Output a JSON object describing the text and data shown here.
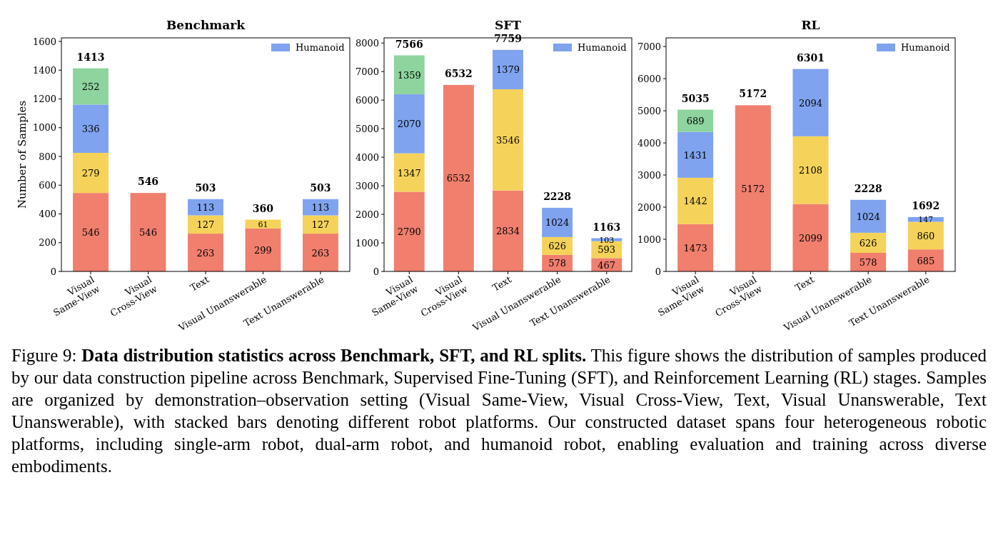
{
  "chart_data": [
    {
      "type": "bar",
      "title": "Benchmark",
      "ylabel": "Number of Samples",
      "stacked": true,
      "categories": [
        "Visual\nSame-View",
        "Visual\nCross-View",
        "Text",
        "Visual Unanswerable",
        "Text Unanswerable"
      ],
      "series": [
        {
          "color": "#f07f6e",
          "values": [
            546,
            546,
            263,
            299,
            263
          ]
        },
        {
          "color": "#f5d35a",
          "values": [
            279,
            null,
            127,
            61,
            127
          ]
        },
        {
          "name": "Humanoid",
          "color": "#7fa3ee",
          "values": [
            336,
            null,
            113,
            null,
            113
          ]
        },
        {
          "color": "#8dd49e",
          "values": [
            252,
            null,
            null,
            null,
            null
          ]
        }
      ],
      "totals": [
        "1413",
        "546",
        "503",
        "360",
        "503"
      ],
      "data_labels": true,
      "ylim": [
        0,
        1625
      ],
      "yticks": [
        0,
        200,
        400,
        600,
        800,
        1000,
        1200,
        1400,
        1600
      ],
      "legend": "top right",
      "annotations": [
        "Figure 9: ",
        "Data distribution statistics across Benchmark, SFT, and RL splits.",
        " This figure shows the distribution of samples produced by our data construction pipeline across Benchmark, Supervised Fine-Tuning (SFT), and Reinforcement Learning (RL) stages. Samples are organized by demonstration–observation setting (Visual Same-View, Visual Cross-View, Text, Visual Unanswerable, Text Unanswerable), with stacked bars denoting different robot platforms. Our constructed dataset spans four heterogeneous robotic platforms, including single-arm robot, dual-arm robot, and humanoid robot, enabling evaluation and training across diverse embodiments."
      ]
    },
    {
      "type": "bar",
      "title": "SFT",
      "stacked": true,
      "categories": [
        "Visual\nSame-View",
        "Visual\nCross-View",
        "Text",
        "Visual Unanswerable",
        "Text Unanswerable"
      ],
      "series": [
        {
          "color": "#f07f6e",
          "values": [
            2790,
            6532,
            2834,
            578,
            467
          ]
        },
        {
          "color": "#f5d35a",
          "values": [
            1347,
            null,
            3546,
            626,
            593
          ]
        },
        {
          "name": "Humanoid",
          "color": "#7fa3ee",
          "values": [
            2070,
            null,
            1379,
            1024,
            103
          ]
        },
        {
          "color": "#8dd49e",
          "values": [
            1359,
            null,
            null,
            null,
            null
          ]
        }
      ],
      "totals": [
        "7566",
        "6532",
        "7759",
        "2228",
        "1163"
      ],
      "data_labels": true,
      "ylim": [
        0,
        8180
      ],
      "yticks": [
        0,
        1000,
        2000,
        3000,
        4000,
        5000,
        6000,
        7000,
        8000
      ],
      "legend": "top right"
    },
    {
      "type": "bar",
      "title": "RL",
      "stacked": true,
      "categories": [
        "Visual\nSame-View",
        "Visual\nCross-View",
        "Text",
        "Visual Unanswerable",
        "Text Unanswerable"
      ],
      "series": [
        {
          "color": "#f07f6e",
          "values": [
            1473,
            5172,
            2099,
            578,
            685
          ]
        },
        {
          "color": "#f5d35a",
          "values": [
            1442,
            null,
            2108,
            626,
            860
          ]
        },
        {
          "name": "Humanoid",
          "color": "#7fa3ee",
          "values": [
            1431,
            null,
            2094,
            1024,
            147
          ]
        },
        {
          "color": "#8dd49e",
          "values": [
            689,
            null,
            null,
            null,
            null
          ]
        }
      ],
      "totals": [
        "5035",
        "5172",
        "6301",
        "2228",
        "1692"
      ],
      "data_labels": true,
      "ylim": [
        0,
        7270
      ],
      "yticks": [
        0,
        1000,
        2000,
        3000,
        4000,
        5000,
        6000,
        7000
      ],
      "legend": "top right"
    }
  ]
}
